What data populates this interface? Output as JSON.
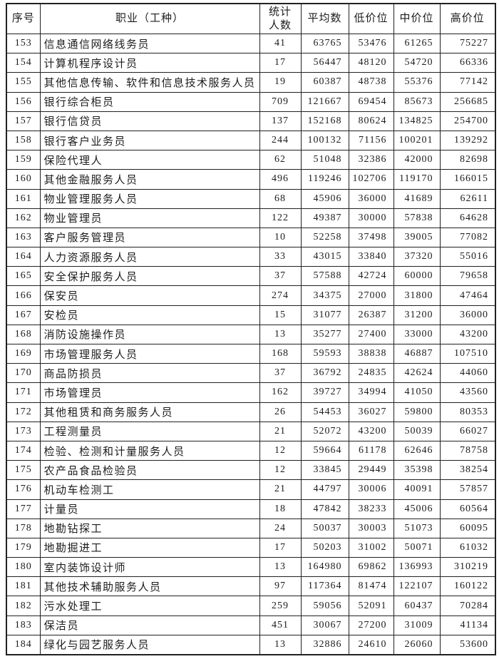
{
  "page": {
    "background": "#ffffff",
    "border_color": "#212121",
    "text_color": "#1c1c1c"
  },
  "table": {
    "headers": [
      "序号",
      "职业（工种）",
      "统计\n人数",
      "平均数",
      "低价位",
      "中价位",
      "高价位"
    ],
    "column_keys": [
      "seq",
      "occupation",
      "count",
      "average",
      "low",
      "mid",
      "high"
    ],
    "rows": [
      [
        153,
        "信息通信网络线务员",
        41,
        63765,
        53476,
        61265,
        75227
      ],
      [
        154,
        "计算机程序设计员",
        17,
        56447,
        48120,
        54720,
        66336
      ],
      [
        155,
        "其他信息传输、软件和信息技术服务人员",
        19,
        60387,
        48738,
        55376,
        77142
      ],
      [
        156,
        "银行综合柜员",
        709,
        121667,
        69454,
        85673,
        256685
      ],
      [
        157,
        "银行信贷员",
        137,
        152168,
        80624,
        134825,
        254700
      ],
      [
        158,
        "银行客户业务员",
        244,
        100132,
        71156,
        100201,
        139292
      ],
      [
        159,
        "保险代理人",
        62,
        51048,
        32386,
        42000,
        82698
      ],
      [
        160,
        "其他金融服务人员",
        496,
        119246,
        102706,
        119170,
        166015
      ],
      [
        161,
        "物业管理服务人员",
        68,
        45906,
        36000,
        41689,
        62611
      ],
      [
        162,
        "物业管理员",
        122,
        49387,
        30000,
        57838,
        64628
      ],
      [
        163,
        "客户服务管理员",
        10,
        52258,
        37498,
        39005,
        77082
      ],
      [
        164,
        "人力资源服务人员",
        33,
        43015,
        33840,
        37320,
        55016
      ],
      [
        165,
        "安全保护服务人员",
        37,
        57588,
        42724,
        60000,
        79658
      ],
      [
        166,
        "保安员",
        274,
        34375,
        27000,
        31800,
        47464
      ],
      [
        167,
        "安检员",
        15,
        31077,
        26387,
        31200,
        36000
      ],
      [
        168,
        "消防设施操作员",
        13,
        35277,
        27400,
        33000,
        43200
      ],
      [
        169,
        "市场管理服务人员",
        168,
        59593,
        38838,
        46887,
        107510
      ],
      [
        170,
        "商品防损员",
        37,
        36792,
        24835,
        42624,
        44060
      ],
      [
        171,
        "市场管理员",
        162,
        39727,
        34994,
        41050,
        43560
      ],
      [
        172,
        "其他租赁和商务服务人员",
        26,
        54453,
        36027,
        59800,
        80353
      ],
      [
        173,
        "工程测量员",
        21,
        52072,
        43200,
        50039,
        66027
      ],
      [
        174,
        "检验、检测和计量服务人员",
        12,
        59664,
        61178,
        62646,
        78758
      ],
      [
        175,
        "农产品食品检验员",
        12,
        33845,
        29449,
        35398,
        38254
      ],
      [
        176,
        "机动车检测工",
        21,
        44797,
        30006,
        40091,
        57857
      ],
      [
        177,
        "计量员",
        18,
        47842,
        38233,
        45006,
        60564
      ],
      [
        178,
        "地勘钻探工",
        24,
        50037,
        30003,
        51073,
        60095
      ],
      [
        179,
        "地勘掘进工",
        17,
        50203,
        31002,
        50071,
        61032
      ],
      [
        180,
        "室内装饰设计师",
        13,
        164980,
        69862,
        136993,
        310219
      ],
      [
        181,
        "其他技术辅助服务人员",
        97,
        117364,
        81474,
        122107,
        160122
      ],
      [
        182,
        "污水处理工",
        259,
        59056,
        52091,
        60437,
        70284
      ],
      [
        183,
        "保洁员",
        451,
        30067,
        27200,
        31009,
        41134
      ],
      [
        184,
        "绿化与园艺服务人员",
        13,
        32886,
        24610,
        26060,
        53600
      ]
    ]
  }
}
